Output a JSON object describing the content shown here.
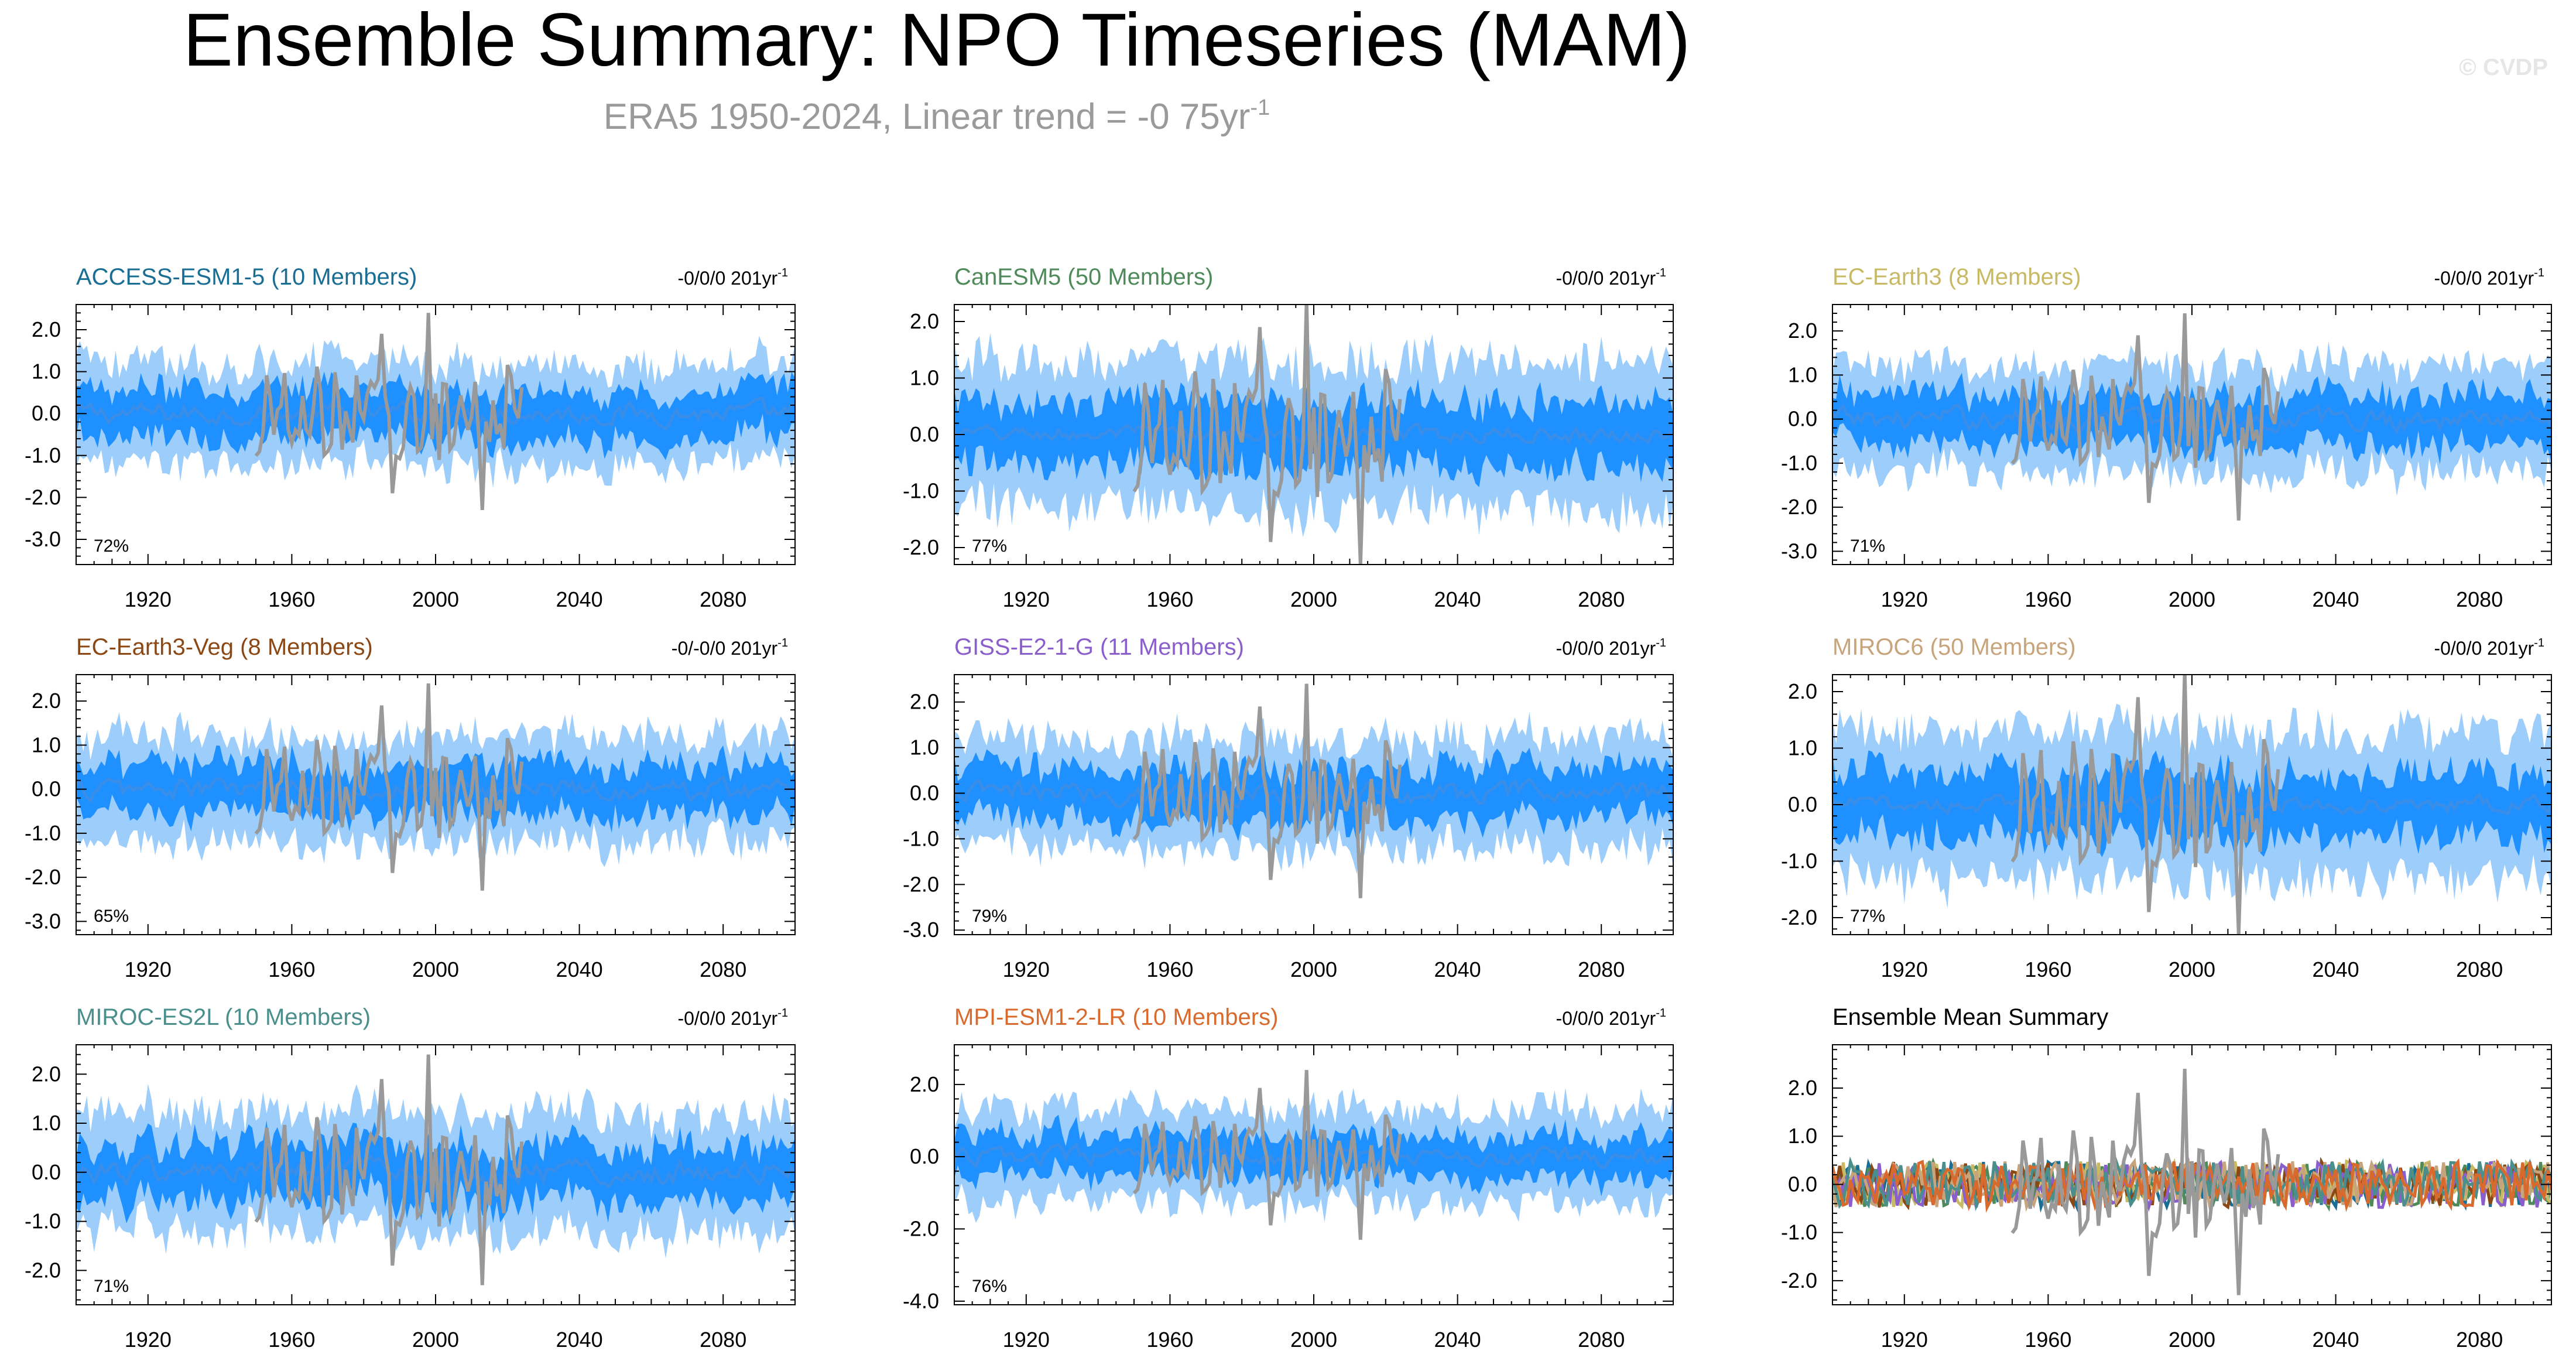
{
  "header": {
    "title": "Ensemble Summary: NPO Timeseries (MAM)",
    "subtitle_main": "ERA5 1950-2024, Linear trend = -0 75yr",
    "subtitle_exp": "-1",
    "watermark": "© CVDP"
  },
  "style": {
    "inner_band_color": "#1e90ff",
    "outer_band_color": "#9dcdfa",
    "ensemble_mean_color": "#3a8ee8",
    "observation_color": "#999999"
  },
  "chart_data": [
    {
      "id": "access",
      "type": "area",
      "title": "ACCESS-ESM1-5 (10 Members)",
      "title_color": "#1a6e94",
      "trend_label": "-0/0/0 201yr",
      "trend_exp": "-1",
      "pct_label": "72%",
      "xlim": [
        1900,
        2100
      ],
      "xticks": [
        1920,
        1960,
        2000,
        2040,
        2080
      ],
      "ylim": [
        -3.6,
        2.6
      ],
      "yticks": [
        -3.0,
        -2.0,
        -1.0,
        0.0,
        1.0,
        2.0
      ],
      "inner_halfwidth": 0.6,
      "outer_halfwidth": 1.2,
      "mean_amplitude": 0.18,
      "obs_period": [
        1950,
        2024
      ],
      "obs_range": [
        -2.3,
        2.4
      ]
    },
    {
      "id": "canesm",
      "type": "area",
      "title": "CanESM5 (50 Members)",
      "title_color": "#4f8a5b",
      "trend_label": "-0/0/0 201yr",
      "trend_exp": "-1",
      "pct_label": "77%",
      "xlim": [
        1900,
        2100
      ],
      "xticks": [
        1920,
        1960,
        2000,
        2040,
        2080
      ],
      "ylim": [
        -2.3,
        2.3
      ],
      "yticks": [
        -2.0,
        -1.0,
        0.0,
        1.0,
        2.0
      ],
      "inner_halfwidth": 0.6,
      "outer_halfwidth": 1.3,
      "mean_amplitude": 0.1,
      "obs_period": [
        1950,
        2024
      ],
      "obs_range": [
        -2.3,
        2.4
      ]
    },
    {
      "id": "ecearth3",
      "type": "area",
      "title": "EC-Earth3 (8 Members)",
      "title_color": "#c8b964",
      "trend_label": "-0/0/0 201yr",
      "trend_exp": "-1",
      "pct_label": "71%",
      "xlim": [
        1900,
        2100
      ],
      "xticks": [
        1920,
        1960,
        2000,
        2040,
        2080
      ],
      "ylim": [
        -3.3,
        2.6
      ],
      "yticks": [
        -3.0,
        -2.0,
        -1.0,
        0.0,
        1.0,
        2.0
      ],
      "inner_halfwidth": 0.6,
      "outer_halfwidth": 1.2,
      "mean_amplitude": 0.18,
      "obs_period": [
        1950,
        2024
      ],
      "obs_range": [
        -2.3,
        2.4
      ]
    },
    {
      "id": "ecearth3veg",
      "type": "area",
      "title": "EC-Earth3-Veg (8 Members)",
      "title_color": "#8c4814",
      "trend_label": "-0/-0/0 201yr",
      "trend_exp": "-1",
      "pct_label": "65%",
      "xlim": [
        1900,
        2100
      ],
      "xticks": [
        1920,
        1960,
        2000,
        2040,
        2080
      ],
      "ylim": [
        -3.3,
        2.6
      ],
      "yticks": [
        -3.0,
        -2.0,
        -1.0,
        0.0,
        1.0,
        2.0
      ],
      "inner_halfwidth": 0.6,
      "outer_halfwidth": 1.2,
      "mean_amplitude": 0.18,
      "obs_period": [
        1950,
        2024
      ],
      "obs_range": [
        -2.3,
        2.4
      ]
    },
    {
      "id": "giss",
      "type": "area",
      "title": "GISS-E2-1-G (11 Members)",
      "title_color": "#8a5ecb",
      "trend_label": "-0/0/0 201yr",
      "trend_exp": "-1",
      "pct_label": "79%",
      "xlim": [
        1900,
        2100
      ],
      "xticks": [
        1920,
        1960,
        2000,
        2040,
        2080
      ],
      "ylim": [
        -3.1,
        2.6
      ],
      "yticks": [
        -3.0,
        -2.0,
        -1.0,
        0.0,
        1.0,
        2.0
      ],
      "inner_halfwidth": 0.6,
      "outer_halfwidth": 1.2,
      "mean_amplitude": 0.18,
      "obs_period": [
        1950,
        2024
      ],
      "obs_range": [
        -2.3,
        2.4
      ]
    },
    {
      "id": "miroc6",
      "type": "area",
      "title": "MIROC6 (50 Members)",
      "title_color": "#c8a47c",
      "trend_label": "-0/0/0 201yr",
      "trend_exp": "-1",
      "pct_label": "77%",
      "xlim": [
        1900,
        2100
      ],
      "xticks": [
        1920,
        1960,
        2000,
        2040,
        2080
      ],
      "ylim": [
        -2.3,
        2.3
      ],
      "yticks": [
        -2.0,
        -1.0,
        0.0,
        1.0,
        2.0
      ],
      "inner_halfwidth": 0.6,
      "outer_halfwidth": 1.3,
      "mean_amplitude": 0.1,
      "obs_period": [
        1950,
        2024
      ],
      "obs_range": [
        -2.3,
        2.4
      ]
    },
    {
      "id": "mirocesl",
      "type": "area",
      "title": "MIROC-ES2L (10 Members)",
      "title_color": "#4a8f8c",
      "trend_label": "-0/0/0 201yr",
      "trend_exp": "-1",
      "pct_label": "71%",
      "xlim": [
        1900,
        2100
      ],
      "xticks": [
        1920,
        1960,
        2000,
        2040,
        2080
      ],
      "ylim": [
        -2.7,
        2.6
      ],
      "yticks": [
        -2.0,
        -1.0,
        0.0,
        1.0,
        2.0
      ],
      "inner_halfwidth": 0.6,
      "outer_halfwidth": 1.2,
      "mean_amplitude": 0.18,
      "obs_period": [
        1950,
        2024
      ],
      "obs_range": [
        -2.3,
        2.4
      ]
    },
    {
      "id": "mpi",
      "type": "area",
      "title": "MPI-ESM1-2-LR (10 Members)",
      "title_color": "#d96a2e",
      "trend_label": "-0/0/0 201yr",
      "trend_exp": "-1",
      "pct_label": "76%",
      "xlim": [
        1900,
        2100
      ],
      "xticks": [
        1920,
        1960,
        2000,
        2040,
        2080
      ],
      "ylim": [
        -4.1,
        3.1
      ],
      "yticks": [
        -4.0,
        -2.0,
        0.0,
        2.0
      ],
      "inner_halfwidth": 0.6,
      "outer_halfwidth": 1.3,
      "mean_amplitude": 0.18,
      "obs_period": [
        1950,
        2024
      ],
      "obs_range": [
        -2.3,
        2.4
      ]
    },
    {
      "id": "summary",
      "type": "line",
      "title": "Ensemble Mean Summary",
      "title_color": "#000000",
      "xlim": [
        1900,
        2100
      ],
      "xticks": [
        1920,
        1960,
        2000,
        2040,
        2080
      ],
      "ylim": [
        -2.5,
        2.9
      ],
      "yticks": [
        -2.0,
        -1.0,
        0.0,
        1.0,
        2.0
      ],
      "series_colors": [
        "#1a6e94",
        "#4f8a5b",
        "#c8b964",
        "#8c4814",
        "#8a5ecb",
        "#c8a47c",
        "#4a8f8c",
        "#d96a2e"
      ],
      "series_amplitude": 0.3,
      "obs_period": [
        1950,
        2024
      ],
      "obs_range": [
        -2.3,
        2.4
      ]
    }
  ]
}
